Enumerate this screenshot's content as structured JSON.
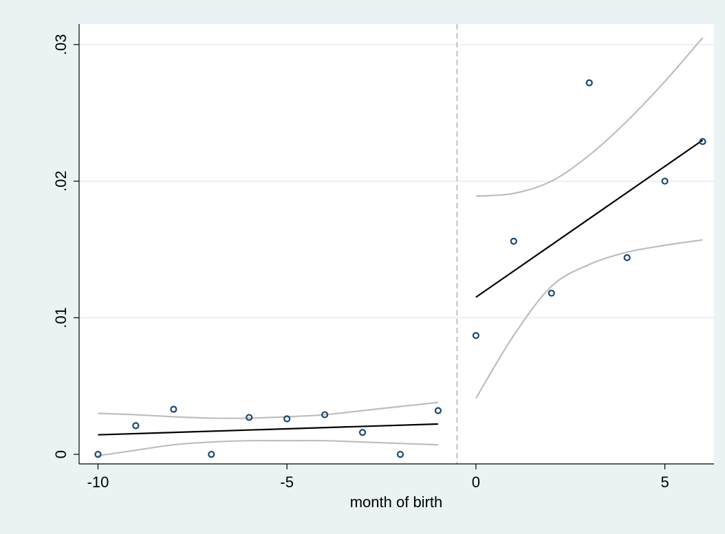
{
  "chart_data": {
    "type": "scatter",
    "title": "",
    "xlabel": "month of birth",
    "ylabel": "",
    "xlim": [
      -10.5,
      6.3
    ],
    "ylim": [
      -0.0007,
      0.0315
    ],
    "x_ticks": [
      -10,
      -5,
      0,
      5
    ],
    "x_tick_labels": [
      "-10",
      "-5",
      "0",
      "5"
    ],
    "y_ticks": [
      0,
      0.01,
      0.02,
      0.03
    ],
    "y_tick_labels": [
      "0",
      ".01",
      ".02",
      ".03"
    ],
    "grid": "horizontal",
    "cutoff_x": -0.5,
    "colors": {
      "background": "#eaf2f3",
      "plot_area": "#ffffff",
      "grid": "#e1eeee",
      "points": "#1a476f",
      "fit_line": "#000000",
      "ci_band": "#bdbdbd",
      "cutoff_line": "#a0a0a0"
    },
    "points": [
      {
        "x": -10,
        "y": 0.0
      },
      {
        "x": -9,
        "y": 0.0021
      },
      {
        "x": -8,
        "y": 0.0033
      },
      {
        "x": -7,
        "y": 0.0
      },
      {
        "x": -6,
        "y": 0.0027
      },
      {
        "x": -5,
        "y": 0.0026
      },
      {
        "x": -4,
        "y": 0.0029
      },
      {
        "x": -3,
        "y": 0.0016
      },
      {
        "x": -2,
        "y": 0.0
      },
      {
        "x": -1,
        "y": 0.0032
      },
      {
        "x": 0,
        "y": 0.0087
      },
      {
        "x": 1,
        "y": 0.0156
      },
      {
        "x": 2,
        "y": 0.0118
      },
      {
        "x": 3,
        "y": 0.0272
      },
      {
        "x": 4,
        "y": 0.0144
      },
      {
        "x": 5,
        "y": 0.02
      },
      {
        "x": 6,
        "y": 0.0229
      }
    ],
    "fit_segments": [
      {
        "name": "left fit",
        "x": [
          -10,
          -1
        ],
        "y": [
          0.00143,
          0.00222
        ]
      },
      {
        "name": "right fit",
        "x": [
          0,
          6
        ],
        "y": [
          0.0115,
          0.023
        ]
      }
    ],
    "ci_bands": [
      {
        "name": "left upper",
        "x": [
          -10,
          -9,
          -8,
          -7,
          -6,
          -5,
          -4,
          -3,
          -2,
          -1
        ],
        "y": [
          0.003,
          0.0029,
          0.00275,
          0.00265,
          0.00265,
          0.00275,
          0.0029,
          0.0032,
          0.0035,
          0.0038
        ]
      },
      {
        "name": "left lower",
        "x": [
          -10,
          -9,
          -8,
          -7,
          -6,
          -5,
          -4,
          -3,
          -2,
          -1
        ],
        "y": [
          -0.0001,
          0.0003,
          0.0007,
          0.0009,
          0.001,
          0.001,
          0.001,
          0.0009,
          0.0008,
          0.0007
        ]
      },
      {
        "name": "right upper",
        "x": [
          0,
          1,
          2,
          3,
          4,
          5,
          6
        ],
        "y": [
          0.0189,
          0.0191,
          0.02,
          0.0219,
          0.0244,
          0.0273,
          0.0305
        ]
      },
      {
        "name": "right lower",
        "x": [
          0,
          1,
          2,
          3,
          4,
          5,
          6
        ],
        "y": [
          0.0041,
          0.0087,
          0.0123,
          0.0139,
          0.0148,
          0.0153,
          0.0157
        ]
      }
    ]
  }
}
